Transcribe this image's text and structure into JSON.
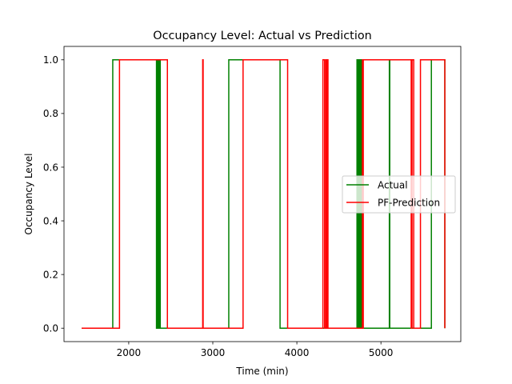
{
  "chart_data": {
    "type": "line",
    "title": "Occupancy Level: Actual vs Prediction",
    "xlabel": "Time (min)",
    "ylabel": "Occupancy Level",
    "xlim": [
      1230,
      5950
    ],
    "ylim": [
      -0.05,
      1.05
    ],
    "x_ticks": [
      2000,
      3000,
      4000,
      5000
    ],
    "x_tick_labels": [
      "2000",
      "3000",
      "4000",
      "5000"
    ],
    "y_ticks": [
      0.0,
      0.2,
      0.4,
      0.6,
      0.8,
      1.0
    ],
    "y_tick_labels": [
      "0.0",
      "0.2",
      "0.4",
      "0.6",
      "0.8",
      "1.0"
    ],
    "grid": false,
    "legend_position": "center-right",
    "series": [
      {
        "name": "Actual",
        "color": "#008000",
        "step": true,
        "x": [
          1440,
          1810,
          2330,
          2335,
          2345,
          2350,
          2360,
          2365,
          2375,
          3190,
          3800,
          4715,
          4720,
          4725,
          4730,
          4740,
          4745,
          4755,
          4760,
          4770,
          4775,
          5100,
          5105,
          5600,
          5760
        ],
        "y": [
          0,
          1,
          0,
          1,
          0,
          1,
          0,
          1,
          0,
          1,
          0,
          1,
          0,
          1,
          0,
          1,
          0,
          1,
          0,
          1,
          0,
          1,
          0,
          1,
          0
        ]
      },
      {
        "name": "PF-Prediction",
        "color": "#ff0000",
        "step": true,
        "x": [
          1440,
          1890,
          2460,
          2880,
          2885,
          3360,
          3890,
          4310,
          4330,
          4345,
          4355,
          4360,
          4370,
          4780,
          4785,
          4790,
          5360,
          5370,
          5390,
          5470,
          5760
        ],
        "y": [
          0,
          1,
          0,
          1,
          0,
          1,
          0,
          1,
          0,
          1,
          0,
          1,
          0,
          1,
          0,
          1,
          0,
          1,
          0,
          1,
          0
        ]
      }
    ]
  }
}
